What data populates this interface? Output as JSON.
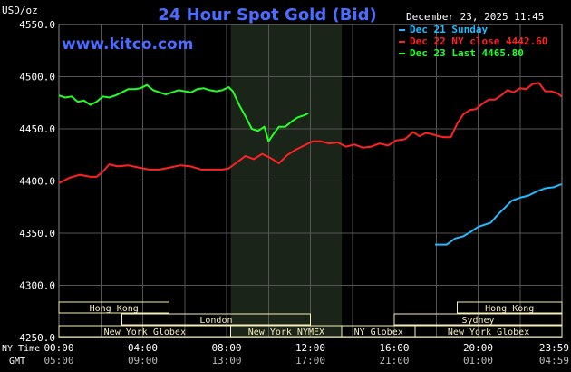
{
  "title": "24 Hour Spot Gold (Bid)",
  "units": "USD/oz",
  "timestamp": "December 23, 2025 11:45",
  "watermark": "www.kitco.com",
  "colors": {
    "background": "#000000",
    "title": "#4a6cff",
    "watermark": "#4a6cff",
    "grid": "#555555",
    "axis_text": "#ffffff",
    "session_shade": "#1a2418",
    "session_box_fill": "#f5eeb8",
    "session_box_text": "#000000"
  },
  "legend": [
    {
      "label": "Dec 21 Sunday",
      "color": "#22bbff"
    },
    {
      "label": "Dec 22 NY close 4442.60",
      "color": "#ff2222"
    },
    {
      "label": "Dec 23 Last 4465.80",
      "color": "#22ff22"
    }
  ],
  "time_axis": {
    "ny_label": "NY Time",
    "gmt_label": "GMT",
    "ny_ticks": [
      "00:00",
      "04:00",
      "08:00",
      "12:00",
      "16:00",
      "20:00",
      "23:59"
    ],
    "gmt_ticks": [
      "05:00",
      "09:00",
      "13:00",
      "17:00",
      "21:00",
      "01:00",
      "04:59"
    ]
  },
  "sessions": [
    {
      "label": "Hong Kong",
      "start": 0,
      "end": 5.25,
      "row": 1
    },
    {
      "label": "Hong Kong",
      "start": 19.0,
      "end": 24.0,
      "row": 1
    },
    {
      "label": "London",
      "start": 3.0,
      "end": 12.0,
      "row": 2
    },
    {
      "label": "Sydney",
      "start": 16.0,
      "end": 24.0,
      "row": 2
    },
    {
      "label": "New York Globex",
      "start": 0,
      "end": 8.2,
      "row": 3
    },
    {
      "label": "New York NYMEX",
      "start": 8.2,
      "end": 13.5,
      "row": 3
    },
    {
      "label": "NY Globex",
      "start": 13.5,
      "end": 17.0,
      "row": 3
    },
    {
      "label": "New York Globex",
      "start": 17.0,
      "end": 24.0,
      "row": 3
    }
  ],
  "chart_data": {
    "type": "line",
    "title": "24 Hour Spot Gold (Bid)",
    "xlabel": "NY Time",
    "ylabel": "USD/oz",
    "xlim": [
      0,
      24
    ],
    "ylim": [
      4250,
      4550
    ],
    "y_ticks": [
      "4250.0",
      "4300.0",
      "4350.0",
      "4400.0",
      "4450.0",
      "4500.0",
      "4550.0"
    ],
    "x_ticks": [
      0,
      4,
      8,
      12,
      16,
      20,
      23.98
    ],
    "shaded_session": [
      8.2,
      13.5
    ],
    "series": [
      {
        "name": "Dec 21 Sunday",
        "color": "#22bbff",
        "x": [
          17.95,
          18.5,
          18.9,
          19.3,
          19.7,
          20.0,
          20.3,
          20.6,
          21.0,
          21.3,
          21.6,
          22.0,
          22.4,
          22.8,
          23.2,
          23.6,
          23.98
        ],
        "y": [
          4339,
          4339,
          4345,
          4347,
          4352,
          4356,
          4358,
          4360,
          4369,
          4375,
          4381,
          4384,
          4386,
          4390,
          4393,
          4394,
          4397
        ]
      },
      {
        "name": "Dec 22 NY close 4442.60",
        "color": "#ff2222",
        "x": [
          0,
          0.5,
          1.0,
          1.5,
          1.8,
          2.1,
          2.4,
          2.8,
          3.3,
          3.8,
          4.3,
          4.8,
          5.3,
          5.8,
          6.3,
          6.8,
          7.3,
          7.8,
          8.1,
          8.5,
          8.9,
          9.3,
          9.7,
          10.1,
          10.5,
          10.9,
          11.3,
          11.7,
          12.1,
          12.5,
          12.9,
          13.3,
          13.7,
          14.1,
          14.5,
          14.9,
          15.3,
          15.7,
          16.1,
          16.5,
          16.9,
          17.2,
          17.5,
          17.8,
          18.1,
          18.4,
          18.7,
          19.0,
          19.3,
          19.6,
          19.9,
          20.2,
          20.5,
          20.8,
          21.1,
          21.4,
          21.7,
          22.0,
          22.3,
          22.6,
          22.9,
          23.2,
          23.5,
          23.8,
          23.98
        ],
        "y": [
          4398,
          4403,
          4406,
          4404,
          4404,
          4409,
          4416,
          4414,
          4415,
          4413,
          4411,
          4411,
          4413,
          4415,
          4414,
          4411,
          4411,
          4411,
          4412,
          4418,
          4424,
          4421,
          4426,
          4422,
          4417,
          4425,
          4430,
          4434,
          4438,
          4438,
          4436,
          4437,
          4433,
          4435,
          4432,
          4433,
          4436,
          4434,
          4439,
          4440,
          4447,
          4443,
          4446,
          4445,
          4443,
          4442,
          4442,
          4455,
          4464,
          4468,
          4469,
          4474,
          4478,
          4478,
          4482,
          4487,
          4485,
          4489,
          4488,
          4493,
          4494,
          4486,
          4486,
          4484,
          4481
        ]
      },
      {
        "name": "Dec 23 Last 4465.80",
        "color": "#22ff22",
        "x": [
          0,
          0.3,
          0.6,
          0.9,
          1.2,
          1.5,
          1.8,
          2.1,
          2.4,
          2.7,
          3.0,
          3.3,
          3.6,
          3.9,
          4.2,
          4.5,
          4.8,
          5.1,
          5.4,
          5.7,
          6.0,
          6.3,
          6.6,
          6.9,
          7.2,
          7.5,
          7.8,
          8.1,
          8.3,
          8.6,
          8.9,
          9.2,
          9.5,
          9.8,
          10.0,
          10.2,
          10.5,
          10.8,
          11.1,
          11.4,
          11.7,
          11.9
        ],
        "y": [
          4482,
          4480,
          4481,
          4476,
          4477,
          4473,
          4476,
          4481,
          4480,
          4482,
          4485,
          4488,
          4488,
          4489,
          4492,
          4487,
          4485,
          4483,
          4485,
          4487,
          4486,
          4485,
          4488,
          4489,
          4487,
          4486,
          4487,
          4490,
          4486,
          4473,
          4462,
          4450,
          4448,
          4452,
          4438,
          4444,
          4452,
          4452,
          4457,
          4461,
          4463,
          4465
        ]
      }
    ],
    "grid": true,
    "legend_position": "top-right"
  }
}
